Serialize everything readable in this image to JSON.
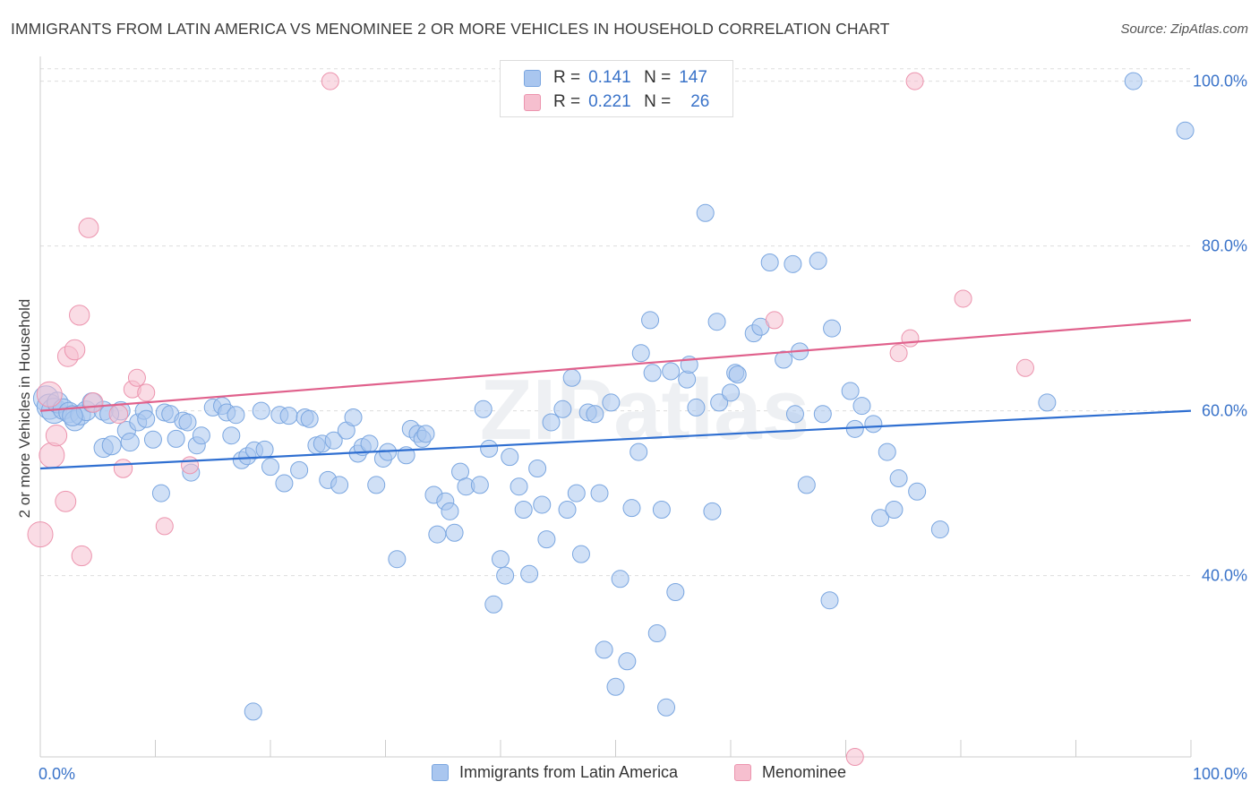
{
  "title": "IMMIGRANTS FROM LATIN AMERICA VS MENOMINEE 2 OR MORE VEHICLES IN HOUSEHOLD CORRELATION CHART",
  "source": "Source: ZipAtlas.com",
  "watermark": "ZIPatlas",
  "legend": {
    "series": [
      {
        "r_label": "R =",
        "r_value": "0.141",
        "n_label": "N =",
        "n_value": "147"
      },
      {
        "r_label": "R =",
        "r_value": "0.221",
        "n_label": "N =",
        "n_value": "26"
      }
    ]
  },
  "bottom_legend": {
    "items": [
      {
        "label": "Immigrants from Latin America"
      },
      {
        "label": "Menominee"
      }
    ]
  },
  "colors": {
    "blue_fill": "#a9c6ef",
    "blue_stroke": "#7aa6e0",
    "blue_line": "#2f6fd1",
    "pink_fill": "#f6bfcf",
    "pink_stroke": "#ec94ae",
    "pink_line": "#e0618c",
    "tick_label": "#3a73c9",
    "grid": "#dddddd"
  },
  "chart_data": {
    "type": "scatter",
    "title": "IMMIGRANTS FROM LATIN AMERICA VS MENOMINEE 2 OR MORE VEHICLES IN HOUSEHOLD CORRELATION CHART",
    "xlabel": "",
    "ylabel": "2 or more Vehicles in Household",
    "xlim": [
      0,
      100
    ],
    "ylim": [
      18,
      103
    ],
    "x_tick_labels": [
      {
        "value": 0,
        "label": "0.0%"
      },
      {
        "value": 100,
        "label": "100.0%"
      }
    ],
    "y_tick_labels": [
      {
        "value": 40,
        "label": "40.0%"
      },
      {
        "value": 60,
        "label": "60.0%"
      },
      {
        "value": 80,
        "label": "80.0%"
      },
      {
        "value": 100,
        "label": "100.0%"
      }
    ],
    "grid": true,
    "legend_position": "top-center",
    "series": [
      {
        "name": "Immigrants from Latin America",
        "r": 0.141,
        "n": 147,
        "trend": {
          "x": [
            0,
            100
          ],
          "y": [
            53.0,
            60.0
          ]
        },
        "points": [
          [
            0.5,
            61.5
          ],
          [
            0.8,
            60.5
          ],
          [
            1.2,
            60.0
          ],
          [
            1.5,
            61.0
          ],
          [
            2.0,
            60.2
          ],
          [
            2.5,
            59.8
          ],
          [
            3.0,
            58.8
          ],
          [
            3.5,
            59.5
          ],
          [
            4.0,
            60.0
          ],
          [
            4.5,
            61.0
          ],
          [
            5.5,
            60.0
          ],
          [
            5.5,
            55.5
          ],
          [
            6.2,
            55.8
          ],
          [
            7.0,
            60.0
          ],
          [
            7.5,
            57.6
          ],
          [
            7.8,
            56.2
          ],
          [
            8.5,
            58.6
          ],
          [
            9.0,
            60.0
          ],
          [
            9.8,
            56.5
          ],
          [
            10.5,
            50.0
          ],
          [
            10.8,
            59.8
          ],
          [
            11.3,
            59.6
          ],
          [
            11.8,
            56.6
          ],
          [
            12.4,
            58.8
          ],
          [
            12.8,
            58.6
          ],
          [
            13.1,
            52.5
          ],
          [
            13.6,
            55.8
          ],
          [
            14.0,
            57.0
          ],
          [
            15.0,
            60.4
          ],
          [
            15.8,
            60.6
          ],
          [
            16.2,
            59.8
          ],
          [
            16.6,
            57.0
          ],
          [
            17.0,
            59.5
          ],
          [
            17.5,
            54.0
          ],
          [
            18.0,
            54.5
          ],
          [
            18.6,
            55.2
          ],
          [
            19.2,
            60.0
          ],
          [
            19.5,
            55.3
          ],
          [
            20.0,
            53.2
          ],
          [
            20.8,
            59.5
          ],
          [
            21.2,
            51.2
          ],
          [
            21.6,
            59.4
          ],
          [
            22.5,
            52.8
          ],
          [
            23.0,
            59.2
          ],
          [
            23.4,
            59.0
          ],
          [
            24.0,
            55.8
          ],
          [
            24.5,
            56.0
          ],
          [
            25.0,
            51.6
          ],
          [
            25.5,
            56.4
          ],
          [
            26.0,
            51.0
          ],
          [
            26.6,
            57.6
          ],
          [
            27.2,
            59.2
          ],
          [
            27.6,
            54.8
          ],
          [
            28.0,
            55.6
          ],
          [
            28.6,
            56.0
          ],
          [
            29.2,
            51.0
          ],
          [
            29.8,
            54.2
          ],
          [
            30.2,
            55.0
          ],
          [
            31.0,
            42.0
          ],
          [
            31.8,
            54.6
          ],
          [
            32.2,
            57.8
          ],
          [
            32.8,
            57.2
          ],
          [
            33.2,
            56.6
          ],
          [
            33.5,
            57.2
          ],
          [
            34.2,
            49.8
          ],
          [
            34.5,
            45.0
          ],
          [
            35.2,
            49.0
          ],
          [
            35.6,
            47.8
          ],
          [
            36.0,
            45.2
          ],
          [
            36.5,
            52.6
          ],
          [
            37.0,
            50.8
          ],
          [
            38.2,
            51.0
          ],
          [
            38.5,
            60.2
          ],
          [
            39.0,
            55.4
          ],
          [
            39.4,
            36.5
          ],
          [
            40.0,
            42.0
          ],
          [
            40.4,
            40.0
          ],
          [
            40.8,
            54.4
          ],
          [
            41.6,
            50.8
          ],
          [
            42.0,
            48.0
          ],
          [
            42.5,
            40.2
          ],
          [
            43.2,
            53.0
          ],
          [
            43.6,
            48.6
          ],
          [
            44.0,
            44.4
          ],
          [
            44.4,
            58.6
          ],
          [
            45.4,
            60.2
          ],
          [
            45.8,
            48.0
          ],
          [
            46.2,
            64.0
          ],
          [
            46.6,
            50.0
          ],
          [
            47.0,
            42.6
          ],
          [
            47.6,
            59.8
          ],
          [
            48.2,
            59.6
          ],
          [
            48.6,
            50.0
          ],
          [
            49.0,
            31.0
          ],
          [
            49.6,
            61.0
          ],
          [
            50.0,
            26.5
          ],
          [
            50.4,
            39.6
          ],
          [
            51.0,
            29.6
          ],
          [
            51.4,
            48.2
          ],
          [
            52.0,
            55.0
          ],
          [
            52.2,
            67.0
          ],
          [
            53.0,
            71.0
          ],
          [
            53.2,
            64.6
          ],
          [
            53.6,
            33.0
          ],
          [
            54.0,
            48.0
          ],
          [
            54.4,
            24.0
          ],
          [
            54.8,
            64.8
          ],
          [
            55.2,
            38.0
          ],
          [
            56.2,
            63.8
          ],
          [
            56.4,
            65.6
          ],
          [
            57.0,
            60.4
          ],
          [
            57.8,
            84.0
          ],
          [
            58.4,
            47.8
          ],
          [
            58.8,
            70.8
          ],
          [
            59.0,
            61.0
          ],
          [
            60.0,
            62.2
          ],
          [
            60.4,
            64.6
          ],
          [
            60.6,
            64.4
          ],
          [
            62.0,
            69.4
          ],
          [
            62.6,
            70.2
          ],
          [
            63.4,
            78.0
          ],
          [
            64.6,
            66.2
          ],
          [
            65.4,
            77.8
          ],
          [
            65.6,
            59.6
          ],
          [
            66.0,
            67.2
          ],
          [
            66.6,
            51.0
          ],
          [
            67.6,
            78.2
          ],
          [
            68.0,
            59.6
          ],
          [
            68.6,
            37.0
          ],
          [
            68.8,
            70.0
          ],
          [
            70.4,
            62.4
          ],
          [
            70.8,
            57.8
          ],
          [
            71.4,
            60.6
          ],
          [
            72.4,
            58.4
          ],
          [
            73.0,
            47.0
          ],
          [
            73.6,
            55.0
          ],
          [
            74.2,
            48.0
          ],
          [
            74.6,
            51.8
          ],
          [
            76.2,
            50.2
          ],
          [
            78.2,
            45.6
          ],
          [
            87.5,
            61.0
          ],
          [
            95.0,
            100.0
          ],
          [
            99.5,
            94.0
          ],
          [
            18.5,
            23.5
          ],
          [
            6.0,
            59.6
          ],
          [
            9.2,
            59.0
          ],
          [
            2.8,
            59.4
          ]
        ]
      },
      {
        "name": "Menominee",
        "r": 0.221,
        "n": 26,
        "trend": {
          "x": [
            0,
            100
          ],
          "y": [
            60.0,
            71.0
          ]
        },
        "points": [
          [
            0.0,
            45.0
          ],
          [
            0.8,
            62.0
          ],
          [
            1.0,
            54.6
          ],
          [
            1.4,
            57.0
          ],
          [
            2.2,
            49.0
          ],
          [
            2.4,
            66.6
          ],
          [
            3.0,
            67.4
          ],
          [
            3.4,
            71.6
          ],
          [
            3.6,
            42.4
          ],
          [
            4.2,
            82.2
          ],
          [
            4.6,
            61.0
          ],
          [
            6.8,
            59.6
          ],
          [
            7.2,
            53.0
          ],
          [
            8.0,
            62.6
          ],
          [
            8.4,
            64.0
          ],
          [
            9.2,
            62.2
          ],
          [
            10.8,
            46.0
          ],
          [
            13.0,
            53.4
          ],
          [
            25.2,
            100.0
          ],
          [
            63.8,
            71.0
          ],
          [
            70.8,
            18.0
          ],
          [
            74.6,
            67.0
          ],
          [
            75.6,
            68.8
          ],
          [
            76.0,
            100.0
          ],
          [
            80.2,
            73.6
          ],
          [
            85.6,
            65.2
          ]
        ]
      }
    ]
  }
}
